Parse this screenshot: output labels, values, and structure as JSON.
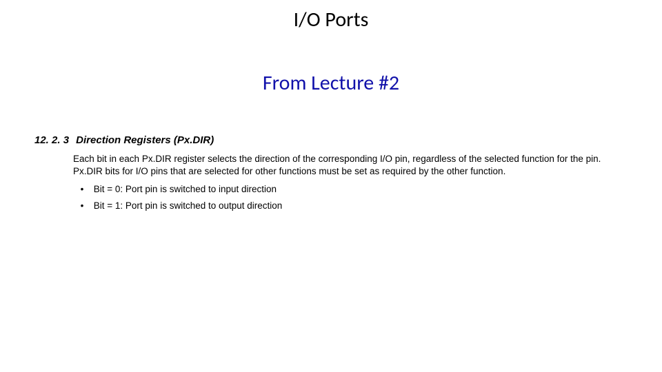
{
  "title": "I/O Ports",
  "subtitle": "From Lecture #2",
  "section": {
    "number": "12. 2. 3",
    "heading": "Direction Registers (Px.DIR)",
    "paragraph": "Each bit in each Px.DIR register selects the direction of the corresponding I/O pin, regardless of the selected function for the pin. Px.DIR bits for I/O pins that are selected for other functions must be set as required by the other function.",
    "bullets": [
      "Bit = 0: Port pin is switched to input direction",
      "Bit = 1: Port pin is switched to output direction"
    ]
  },
  "colors": {
    "title": "#000000",
    "subtitle": "#1111aa",
    "body": "#000000",
    "background": "#ffffff"
  }
}
